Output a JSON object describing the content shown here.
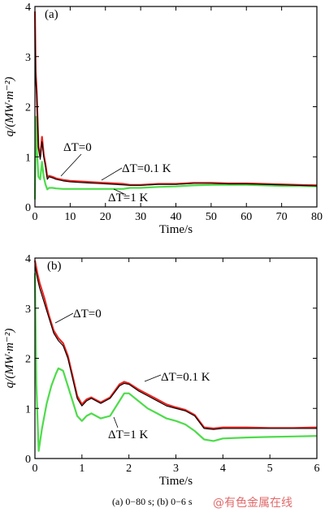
{
  "chart_data": [
    {
      "type": "line",
      "panel_label": "(a)",
      "xlabel": "Time/s",
      "ylabel": "q/(MW·m⁻²)",
      "xlim": [
        0,
        80
      ],
      "ylim": [
        0,
        4
      ],
      "xticks": [
        0,
        10,
        20,
        30,
        40,
        50,
        60,
        70,
        80
      ],
      "yticks": [
        0,
        1,
        2,
        3,
        4
      ],
      "grid": false,
      "series": [
        {
          "name": "ΔT=0",
          "color": "#000000",
          "x": [
            0,
            0.2,
            0.5,
            1,
            1.5,
            2,
            2.5,
            3,
            3.5,
            4,
            5,
            6,
            8,
            10,
            15,
            20,
            25,
            27,
            30,
            35,
            40,
            45,
            50,
            55,
            60,
            65,
            70,
            75,
            80
          ],
          "y": [
            3.6,
            2.6,
            2.2,
            1.2,
            0.95,
            1.3,
            1.0,
            0.8,
            0.55,
            0.6,
            0.58,
            0.55,
            0.52,
            0.5,
            0.48,
            0.46,
            0.44,
            0.43,
            0.43,
            0.45,
            0.45,
            0.47,
            0.47,
            0.46,
            0.46,
            0.45,
            0.44,
            0.43,
            0.42
          ]
        },
        {
          "name": "ΔT=0.1 K",
          "color": "#e8231f",
          "x": [
            0,
            0.2,
            0.5,
            1,
            1.5,
            2,
            2.5,
            3,
            3.5,
            4,
            5,
            6,
            8,
            10,
            15,
            20,
            25,
            27,
            30,
            35,
            40,
            45,
            50,
            55,
            60,
            65,
            70,
            75,
            80
          ],
          "y": [
            3.9,
            2.7,
            2.3,
            1.2,
            1.0,
            1.4,
            1.05,
            0.85,
            0.6,
            0.62,
            0.6,
            0.57,
            0.54,
            0.52,
            0.5,
            0.48,
            0.46,
            0.44,
            0.44,
            0.46,
            0.46,
            0.48,
            0.48,
            0.47,
            0.47,
            0.46,
            0.45,
            0.44,
            0.43
          ]
        },
        {
          "name": "ΔT=1 K",
          "color": "#4ddc4a",
          "x": [
            0,
            0.2,
            0.5,
            1,
            1.5,
            2,
            2.5,
            3,
            3.5,
            4,
            5,
            6,
            8,
            10,
            15,
            20,
            25,
            27,
            30,
            35,
            40,
            45,
            50,
            55,
            60,
            65,
            70,
            75,
            80
          ],
          "y": [
            0.15,
            1.8,
            1.2,
            0.6,
            0.55,
            0.9,
            0.6,
            0.45,
            0.35,
            0.38,
            0.38,
            0.37,
            0.36,
            0.36,
            0.36,
            0.36,
            0.36,
            0.38,
            0.38,
            0.4,
            0.41,
            0.43,
            0.44,
            0.44,
            0.44,
            0.43,
            0.42,
            0.42,
            0.41
          ]
        }
      ],
      "annotations": [
        {
          "text": "ΔT=0",
          "series": 0
        },
        {
          "text": "ΔT=0.1 K",
          "series": 1
        },
        {
          "text": "ΔT=1 K",
          "series": 2
        }
      ]
    },
    {
      "type": "line",
      "panel_label": "(b)",
      "xlabel": "Time/s",
      "ylabel": "q/(MW·m⁻²)",
      "xlim": [
        0,
        6
      ],
      "ylim": [
        0,
        4
      ],
      "xticks": [
        0,
        1,
        2,
        3,
        4,
        5,
        6
      ],
      "yticks": [
        0,
        1,
        2,
        3,
        4
      ],
      "grid": false,
      "series": [
        {
          "name": "ΔT=0",
          "color": "#000000",
          "x": [
            0,
            0.05,
            0.1,
            0.2,
            0.3,
            0.4,
            0.5,
            0.6,
            0.7,
            0.8,
            0.9,
            1.0,
            1.1,
            1.2,
            1.3,
            1.4,
            1.6,
            1.8,
            1.9,
            2.0,
            2.2,
            2.4,
            2.6,
            2.8,
            3.0,
            3.2,
            3.4,
            3.6,
            3.8,
            4.0,
            4.5,
            5.0,
            5.5,
            6.0
          ],
          "y": [
            3.85,
            3.6,
            3.4,
            3.1,
            2.8,
            2.5,
            2.35,
            2.25,
            2.0,
            1.6,
            1.2,
            1.05,
            1.15,
            1.2,
            1.15,
            1.1,
            1.2,
            1.45,
            1.5,
            1.48,
            1.35,
            1.25,
            1.15,
            1.05,
            1.0,
            0.95,
            0.85,
            0.6,
            0.58,
            0.6,
            0.6,
            0.6,
            0.6,
            0.6
          ]
        },
        {
          "name": "ΔT=0.1 K",
          "color": "#e8231f",
          "x": [
            0,
            0.05,
            0.1,
            0.2,
            0.3,
            0.4,
            0.5,
            0.6,
            0.7,
            0.8,
            0.9,
            1.0,
            1.1,
            1.2,
            1.3,
            1.4,
            1.6,
            1.8,
            1.9,
            2.0,
            2.2,
            2.4,
            2.6,
            2.8,
            3.0,
            3.2,
            3.4,
            3.6,
            3.8,
            4.0,
            4.5,
            5.0,
            5.5,
            6.0
          ],
          "y": [
            3.95,
            3.7,
            3.5,
            3.2,
            2.85,
            2.55,
            2.4,
            2.3,
            2.05,
            1.65,
            1.25,
            1.08,
            1.18,
            1.22,
            1.17,
            1.12,
            1.22,
            1.48,
            1.53,
            1.5,
            1.38,
            1.28,
            1.18,
            1.08,
            1.02,
            0.97,
            0.87,
            0.62,
            0.6,
            0.62,
            0.62,
            0.61,
            0.61,
            0.62
          ]
        },
        {
          "name": "ΔT=1 K",
          "color": "#4ddc4a",
          "x": [
            0,
            0.03,
            0.08,
            0.15,
            0.25,
            0.35,
            0.45,
            0.5,
            0.6,
            0.7,
            0.8,
            0.9,
            1.0,
            1.1,
            1.2,
            1.3,
            1.4,
            1.6,
            1.8,
            1.9,
            2.0,
            2.2,
            2.4,
            2.6,
            2.8,
            3.0,
            3.2,
            3.4,
            3.6,
            3.8,
            4.0,
            4.5,
            5.0,
            5.5,
            6.0
          ],
          "y": [
            3.7,
            1.5,
            0.15,
            0.6,
            1.1,
            1.45,
            1.7,
            1.8,
            1.75,
            1.45,
            1.15,
            0.85,
            0.75,
            0.85,
            0.9,
            0.85,
            0.8,
            0.85,
            1.15,
            1.3,
            1.3,
            1.15,
            1.0,
            0.9,
            0.8,
            0.75,
            0.68,
            0.55,
            0.38,
            0.35,
            0.4,
            0.42,
            0.43,
            0.44,
            0.45
          ]
        }
      ],
      "annotations": [
        {
          "text": "ΔT=0",
          "series": 0
        },
        {
          "text": "ΔT=0.1 K",
          "series": 1
        },
        {
          "text": "ΔT=1 K",
          "series": 2
        }
      ]
    }
  ],
  "caption": "(a) 0−80 s; (b) 0−6 s",
  "watermark": "@有色金属在线"
}
